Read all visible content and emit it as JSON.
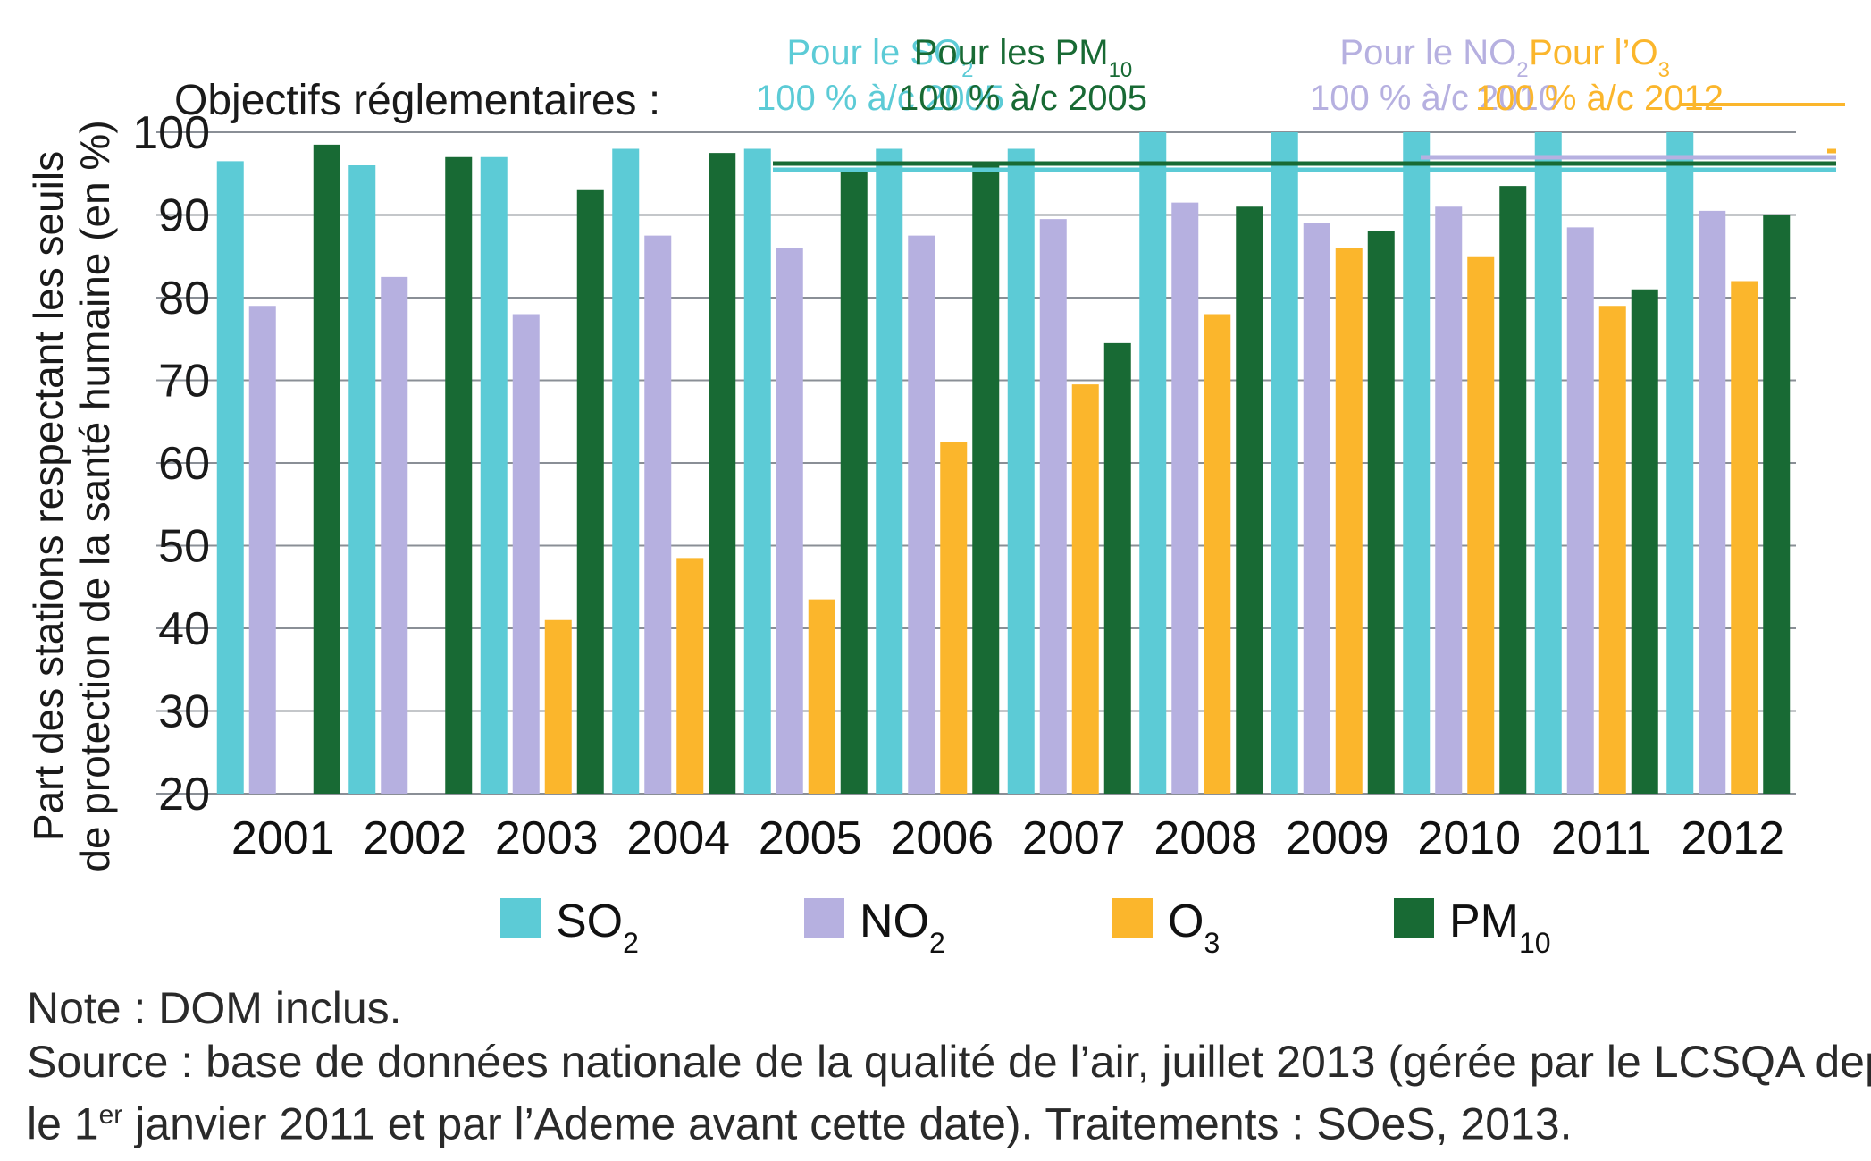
{
  "chart_data": {
    "type": "bar",
    "ylabel_line1": "Part des stations  respectant les seuils",
    "ylabel_line2": "de protection de la santé humaine (en %)",
    "ylim": [
      20,
      100
    ],
    "yticks": [
      "20",
      "30",
      "40",
      "50",
      "60",
      "70",
      "80",
      "90",
      "100"
    ],
    "grid": true,
    "legend_position": "bottom",
    "categories": [
      "2001",
      "2002",
      "2003",
      "2004",
      "2005",
      "2006",
      "2007",
      "2008",
      "2009",
      "2010",
      "2011",
      "2012"
    ],
    "series": [
      {
        "name": "SO2",
        "label_main": "SO",
        "label_sub": "2",
        "color": "#5ccbd6",
        "values": [
          96.5,
          96,
          97,
          98,
          98,
          98,
          98,
          100,
          100,
          100,
          100,
          100
        ]
      },
      {
        "name": "NO2",
        "label_main": "NO",
        "label_sub": "2",
        "color": "#b6b0e0",
        "values": [
          79,
          82.5,
          78,
          87.5,
          86,
          87.5,
          89.5,
          91.5,
          89,
          91,
          88.5,
          90.5
        ]
      },
      {
        "name": "O3",
        "label_main": "O",
        "label_sub": "3",
        "color": "#fbb62c",
        "values": [
          null,
          null,
          41,
          48.5,
          43.5,
          62.5,
          69.5,
          78,
          86,
          85,
          79,
          82
        ]
      },
      {
        "name": "PM10",
        "label_main": "PM",
        "label_sub": "10",
        "color": "#186a34",
        "values": [
          98.5,
          97,
          93,
          97.5,
          95.5,
          96,
          74.5,
          91,
          88,
          93.5,
          81,
          90
        ]
      }
    ],
    "objectives_label": "Objectifs réglementaires :",
    "objectives": [
      {
        "line1_main": "Pour le SO",
        "line1_sub": "2",
        "line2": "100 % à/c 2005",
        "color": "#5ccbd6",
        "start_year": "2001"
      },
      {
        "line1_main": "Pour les PM",
        "line1_sub": "10",
        "line2": "100 % à/c 2005",
        "color": "#186a34",
        "start_year": "2001"
      },
      {
        "line1_main": "Pour le NO",
        "line1_sub": "2",
        "line2": "100 % à/c 2010",
        "color": "#b6b0e0",
        "start_year": "2010"
      },
      {
        "line1_main": "Pour l’O",
        "line1_sub": "3",
        "line2": "100 % à/c 2012",
        "color": "#fbb62c",
        "start_year": "2012"
      }
    ]
  },
  "notes": {
    "note": "Note : DOM inclus.",
    "source_line1": "Source : base de données nationale de la qualité de l’air, juillet 2013 (gérée par le LCSQA depuis",
    "source_line2_a": "le 1",
    "source_line2_sup": "er",
    "source_line2_b": " janvier 2011 et par l’Ademe avant cette date). Traitements : SOeS, 2013."
  }
}
